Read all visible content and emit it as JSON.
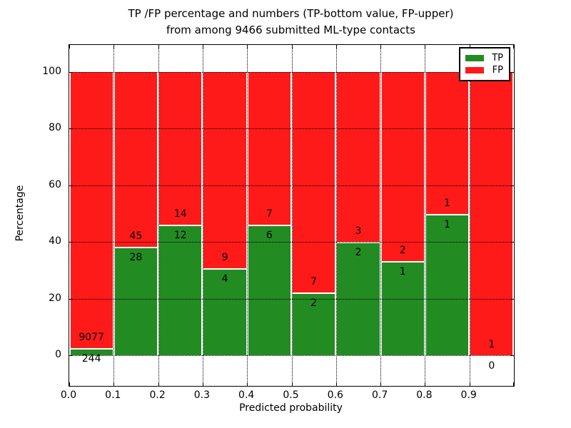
{
  "title": {
    "line1": "TP /FP percentage and numbers (TP-bottom value, FP-upper)",
    "line2": "from among 9466 submitted ML-type contacts"
  },
  "chart_data": {
    "type": "bar",
    "subtype": "stacked-percentage-histogram",
    "title": "TP /FP percentage and numbers (TP-bottom value, FP-upper) from among 9466 submitted ML-type contacts",
    "xlabel": "Predicted probability",
    "ylabel": "Percentage",
    "x_tick_labels": [
      "0.0",
      "0.1",
      "0.2",
      "0.3",
      "0.4",
      "0.5",
      "0.6",
      "0.7",
      "0.8",
      "0.9"
    ],
    "y_ticks": [
      0,
      20,
      40,
      60,
      80,
      100
    ],
    "xlim": [
      0.0,
      1.0
    ],
    "ylim": [
      -11,
      110
    ],
    "bin_width": 0.1,
    "grid": {
      "style": "dotted",
      "color": "#000000",
      "above_bars": true
    },
    "total_contacts": 9466,
    "bar_label_note": "FP count printed above the TP/FP boundary, TP count printed below it",
    "series": [
      {
        "name": "TP",
        "color": "#228b22",
        "counts": [
          244,
          28,
          12,
          4,
          6,
          2,
          2,
          1,
          1,
          0
        ]
      },
      {
        "name": "FP",
        "color": "#ff1a1a",
        "counts": [
          9077,
          45,
          14,
          9,
          7,
          7,
          3,
          2,
          1,
          1
        ]
      }
    ],
    "tp_percent_of_bin": [
      2.6,
      38.4,
      46.2,
      30.8,
      46.2,
      22.2,
      40.0,
      33.3,
      50.0,
      0.0
    ],
    "legend": {
      "position": "upper right",
      "entries": [
        {
          "label": "TP",
          "color": "#228b22"
        },
        {
          "label": "FP",
          "color": "#ff1a1a"
        }
      ]
    }
  },
  "colors": {
    "tp_green": "#228b22",
    "fp_red": "#ff1a1a",
    "background": "#ffffff",
    "text": "#000000"
  }
}
